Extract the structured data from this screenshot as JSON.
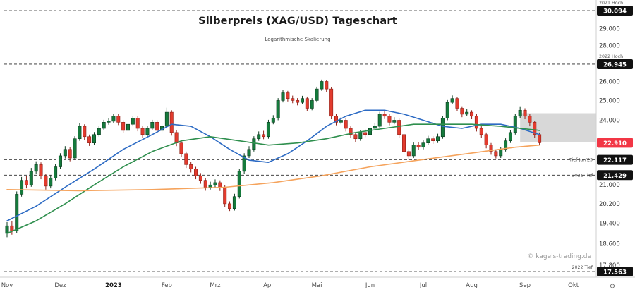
{
  "header": {
    "title": "Silberpreis (XAG/USD) Tageschart",
    "subtitle": "Logarithmische Skalierung"
  },
  "watermark": "© kagels-trading.de",
  "colors": {
    "up_fill": "#157a3c",
    "up_stroke": "#0b3d1f",
    "down_fill": "#e23b2e",
    "down_stroke": "#8f1f16",
    "ma_blue": "#2d6bc4",
    "ma_green": "#2f8f4e",
    "ma_orange": "#f5a35c",
    "badge_dark": "#111111",
    "badge_current": "#f23645",
    "zone": "#d8d8d8",
    "dashed_line": "#2a2a2a",
    "axis_text": "#3a3a3a",
    "note_text": "#555555",
    "separator": "#cfcfcf"
  },
  "x_axis": {
    "gear": "⚙"
  },
  "chart_data": {
    "type": "candlestick",
    "title": "Silberpreis (XAG/USD) Tageschart",
    "subtitle": "Logarithmische Skalierung",
    "scale": "logarithmic",
    "timeframe": "Tageschart (daily)",
    "symbol": "XAG/USD",
    "y_range": [
      17.563,
      30.094
    ],
    "current_price": 22.91,
    "x_labels": [
      {
        "label": "Nov",
        "index": 0,
        "bold": false
      },
      {
        "label": "Dez",
        "index": 11,
        "bold": false
      },
      {
        "label": "2023",
        "index": 22,
        "bold": true
      },
      {
        "label": "Feb",
        "index": 33,
        "bold": false
      },
      {
        "label": "Mrz",
        "index": 43,
        "bold": false
      },
      {
        "label": "Apr",
        "index": 54,
        "bold": false
      },
      {
        "label": "Mai",
        "index": 64,
        "bold": false
      },
      {
        "label": "Jun",
        "index": 75,
        "bold": false
      },
      {
        "label": "Jul",
        "index": 86,
        "bold": false
      },
      {
        "label": "Aug",
        "index": 96,
        "bold": false
      },
      {
        "label": "Sep",
        "index": 107,
        "bold": false
      },
      {
        "label": "Okt",
        "index": 117,
        "bold": false
      }
    ],
    "y_ticks": [
      {
        "label": "29.000",
        "value": 29.0
      },
      {
        "label": "28.000",
        "value": 28.0
      },
      {
        "label": "26.000",
        "value": 26.0
      },
      {
        "label": "25.000",
        "value": 25.0
      },
      {
        "label": "24.000",
        "value": 24.0
      },
      {
        "label": "21.000",
        "value": 21.0
      },
      {
        "label": "20.200",
        "value": 20.2
      },
      {
        "label": "19.400",
        "value": 19.4
      },
      {
        "label": "18.600",
        "value": 18.6
      },
      {
        "label": "17.800",
        "value": 17.8
      }
    ],
    "levels": [
      {
        "price": 30.094,
        "badge": "30.094",
        "note": "2021 Hoch",
        "note_pos": "axis_above",
        "note_dy": 0,
        "style": "dark",
        "dashed": true
      },
      {
        "price": 26.945,
        "badge": "26.945",
        "note": "2022 Hoch",
        "note_pos": "axis_above",
        "note_dy": 0,
        "style": "dark",
        "dashed": true
      },
      {
        "price": 22.91,
        "badge": "22.910",
        "note": "",
        "note_pos": "none",
        "note_dy": 0,
        "style": "current",
        "dashed": false
      },
      {
        "price": 22.117,
        "badge": "22.117",
        "note": "Tief Jun'23",
        "note_pos": "plot_left",
        "note_dy": 2,
        "style": "dark",
        "dashed": true
      },
      {
        "price": 21.429,
        "badge": "21.429",
        "note": "2021 Tief",
        "note_pos": "plot_left",
        "note_dy": 2,
        "style": "dark",
        "dashed": true
      },
      {
        "price": 17.563,
        "badge": "17.563",
        "note": "2022 Tief",
        "note_pos": "plot_left",
        "note_dy": -4,
        "style": "dark",
        "dashed": true
      }
    ],
    "highlight_zone": {
      "price_from": 22.95,
      "price_to": 24.35,
      "from_index": 106,
      "to": "right-edge"
    },
    "candles": [
      [
        19.0,
        19.45,
        18.85,
        19.3
      ],
      [
        19.3,
        19.5,
        18.95,
        19.1
      ],
      [
        19.1,
        20.72,
        19.02,
        20.6
      ],
      [
        20.6,
        21.35,
        20.5,
        21.2
      ],
      [
        21.2,
        21.38,
        20.85,
        21.0
      ],
      [
        21.0,
        21.75,
        20.92,
        21.6
      ],
      [
        21.6,
        22.05,
        21.48,
        21.9
      ],
      [
        21.9,
        22.0,
        21.25,
        21.4
      ],
      [
        21.4,
        21.5,
        20.8,
        20.95
      ],
      [
        20.95,
        21.42,
        20.85,
        21.3
      ],
      [
        21.3,
        21.92,
        21.2,
        21.8
      ],
      [
        21.8,
        22.42,
        21.7,
        22.3
      ],
      [
        22.3,
        22.75,
        22.18,
        22.6
      ],
      [
        22.6,
        22.7,
        22.05,
        22.2
      ],
      [
        22.2,
        23.22,
        22.12,
        23.1
      ],
      [
        23.1,
        23.85,
        23.0,
        23.7
      ],
      [
        23.7,
        23.8,
        23.05,
        23.2
      ],
      [
        23.2,
        23.3,
        22.76,
        22.9
      ],
      [
        22.9,
        23.42,
        22.8,
        23.3
      ],
      [
        23.3,
        23.72,
        23.2,
        23.6
      ],
      [
        23.6,
        24.02,
        23.5,
        23.9
      ],
      [
        23.9,
        24.1,
        23.78,
        23.95
      ],
      [
        23.95,
        24.32,
        23.85,
        24.2
      ],
      [
        24.2,
        24.3,
        23.76,
        23.9
      ],
      [
        23.9,
        24.0,
        23.36,
        23.5
      ],
      [
        23.5,
        23.92,
        23.4,
        23.8
      ],
      [
        23.8,
        24.22,
        23.7,
        24.1
      ],
      [
        24.1,
        24.2,
        23.46,
        23.6
      ],
      [
        23.6,
        23.7,
        23.15,
        23.3
      ],
      [
        23.3,
        23.72,
        23.2,
        23.6
      ],
      [
        23.6,
        24.02,
        23.5,
        23.9
      ],
      [
        23.9,
        24.0,
        23.36,
        23.5
      ],
      [
        23.5,
        23.82,
        23.4,
        23.7
      ],
      [
        23.7,
        24.63,
        23.6,
        24.4
      ],
      [
        24.4,
        24.5,
        23.25,
        23.4
      ],
      [
        23.4,
        23.5,
        22.75,
        22.9
      ],
      [
        22.9,
        23.0,
        22.25,
        22.4
      ],
      [
        22.4,
        22.5,
        21.75,
        21.9
      ],
      [
        21.9,
        22.02,
        21.55,
        21.7
      ],
      [
        21.7,
        21.8,
        21.25,
        21.4
      ],
      [
        21.4,
        21.52,
        21.05,
        21.2
      ],
      [
        21.2,
        21.3,
        20.75,
        20.9
      ],
      [
        20.9,
        21.14,
        20.8,
        21.0
      ],
      [
        21.0,
        21.24,
        20.9,
        21.1
      ],
      [
        21.1,
        21.2,
        20.74,
        20.9
      ],
      [
        20.9,
        20.98,
        20.05,
        20.2
      ],
      [
        20.2,
        20.3,
        19.9,
        20.0
      ],
      [
        20.0,
        20.62,
        19.92,
        20.5
      ],
      [
        20.5,
        21.72,
        20.42,
        21.6
      ],
      [
        21.6,
        22.42,
        21.5,
        22.3
      ],
      [
        22.3,
        22.75,
        22.2,
        22.6
      ],
      [
        22.6,
        23.22,
        22.5,
        23.1
      ],
      [
        23.1,
        23.45,
        23.0,
        23.3
      ],
      [
        23.3,
        23.48,
        23.08,
        23.2
      ],
      [
        23.2,
        24.02,
        23.1,
        23.9
      ],
      [
        23.9,
        24.25,
        23.8,
        24.1
      ],
      [
        24.1,
        25.12,
        24.0,
        25.0
      ],
      [
        25.0,
        25.55,
        24.9,
        25.4
      ],
      [
        25.4,
        25.5,
        24.95,
        25.1
      ],
      [
        25.1,
        25.25,
        24.86,
        25.0
      ],
      [
        25.0,
        25.12,
        24.75,
        24.9
      ],
      [
        24.9,
        25.24,
        24.8,
        25.1
      ],
      [
        25.1,
        25.2,
        24.45,
        24.6
      ],
      [
        24.6,
        25.12,
        24.5,
        25.0
      ],
      [
        25.0,
        25.72,
        24.9,
        25.6
      ],
      [
        25.6,
        26.1,
        25.5,
        26.0
      ],
      [
        26.0,
        26.08,
        25.45,
        25.6
      ],
      [
        25.6,
        25.7,
        24.05,
        24.2
      ],
      [
        24.2,
        24.32,
        23.75,
        23.9
      ],
      [
        23.9,
        24.15,
        23.8,
        24.0
      ],
      [
        24.0,
        24.1,
        23.45,
        23.6
      ],
      [
        23.6,
        23.7,
        23.15,
        23.3
      ],
      [
        23.3,
        23.42,
        22.95,
        23.1
      ],
      [
        23.1,
        23.52,
        23.0,
        23.4
      ],
      [
        23.4,
        23.55,
        23.18,
        23.3
      ],
      [
        23.3,
        23.72,
        23.2,
        23.6
      ],
      [
        23.6,
        23.85,
        23.5,
        23.7
      ],
      [
        23.7,
        24.42,
        23.6,
        24.3
      ],
      [
        24.3,
        24.45,
        24.06,
        24.2
      ],
      [
        24.2,
        24.3,
        23.75,
        23.9
      ],
      [
        23.9,
        24.15,
        23.8,
        24.0
      ],
      [
        24.0,
        24.08,
        23.15,
        23.3
      ],
      [
        23.3,
        23.38,
        22.35,
        22.5
      ],
      [
        22.5,
        22.6,
        22.12,
        22.3
      ],
      [
        22.3,
        22.92,
        22.2,
        22.8
      ],
      [
        22.8,
        22.95,
        22.56,
        22.7
      ],
      [
        22.7,
        23.02,
        22.6,
        22.9
      ],
      [
        22.9,
        23.24,
        22.8,
        23.1
      ],
      [
        23.1,
        23.22,
        22.86,
        23.0
      ],
      [
        23.0,
        23.34,
        22.9,
        23.2
      ],
      [
        23.2,
        24.22,
        23.1,
        24.1
      ],
      [
        24.1,
        25.02,
        24.0,
        24.9
      ],
      [
        24.9,
        25.26,
        24.8,
        25.1
      ],
      [
        25.1,
        25.18,
        24.45,
        24.6
      ],
      [
        24.6,
        24.7,
        24.15,
        24.3
      ],
      [
        24.3,
        24.55,
        24.2,
        24.4
      ],
      [
        24.4,
        24.5,
        24.05,
        24.2
      ],
      [
        24.2,
        24.3,
        23.45,
        23.6
      ],
      [
        23.6,
        23.7,
        23.15,
        23.3
      ],
      [
        23.3,
        23.4,
        22.65,
        22.8
      ],
      [
        22.8,
        22.9,
        22.35,
        22.5
      ],
      [
        22.5,
        22.58,
        22.18,
        22.3
      ],
      [
        22.3,
        22.72,
        22.2,
        22.6
      ],
      [
        22.6,
        23.12,
        22.5,
        23.0
      ],
      [
        23.0,
        23.52,
        22.9,
        23.4
      ],
      [
        23.4,
        24.32,
        23.3,
        24.2
      ],
      [
        24.2,
        24.7,
        24.1,
        24.5
      ],
      [
        24.5,
        24.6,
        24.05,
        24.2
      ],
      [
        24.2,
        24.3,
        23.7,
        23.9
      ],
      [
        23.9,
        23.98,
        23.15,
        23.3
      ],
      [
        23.3,
        23.4,
        22.8,
        22.91
      ]
    ],
    "overlays": [
      {
        "name": "ma-blue",
        "color_key": "ma_blue",
        "points": [
          [
            0,
            19.5
          ],
          [
            6,
            20.1
          ],
          [
            12,
            20.9
          ],
          [
            18,
            21.7
          ],
          [
            24,
            22.6
          ],
          [
            30,
            23.3
          ],
          [
            34,
            23.8
          ],
          [
            38,
            23.7
          ],
          [
            42,
            23.2
          ],
          [
            46,
            22.6
          ],
          [
            50,
            22.1
          ],
          [
            54,
            22.0
          ],
          [
            58,
            22.4
          ],
          [
            62,
            23.0
          ],
          [
            66,
            23.7
          ],
          [
            70,
            24.2
          ],
          [
            74,
            24.5
          ],
          [
            78,
            24.5
          ],
          [
            82,
            24.3
          ],
          [
            86,
            24.0
          ],
          [
            90,
            23.7
          ],
          [
            94,
            23.6
          ],
          [
            98,
            23.8
          ],
          [
            102,
            23.8
          ],
          [
            106,
            23.6
          ],
          [
            110,
            23.3
          ]
        ]
      },
      {
        "name": "ma-green",
        "color_key": "ma_green",
        "points": [
          [
            0,
            19.0
          ],
          [
            6,
            19.5
          ],
          [
            12,
            20.2
          ],
          [
            18,
            21.0
          ],
          [
            24,
            21.8
          ],
          [
            30,
            22.5
          ],
          [
            36,
            23.0
          ],
          [
            42,
            23.2
          ],
          [
            48,
            23.0
          ],
          [
            54,
            22.8
          ],
          [
            60,
            22.9
          ],
          [
            66,
            23.1
          ],
          [
            72,
            23.4
          ],
          [
            78,
            23.6
          ],
          [
            84,
            23.8
          ],
          [
            90,
            23.8
          ],
          [
            96,
            23.8
          ],
          [
            102,
            23.7
          ],
          [
            110,
            23.5
          ]
        ]
      },
      {
        "name": "ma-orange",
        "color_key": "ma_orange",
        "points": [
          [
            0,
            20.8
          ],
          [
            15,
            20.75
          ],
          [
            30,
            20.8
          ],
          [
            45,
            20.9
          ],
          [
            55,
            21.1
          ],
          [
            65,
            21.4
          ],
          [
            75,
            21.8
          ],
          [
            85,
            22.1
          ],
          [
            95,
            22.4
          ],
          [
            105,
            22.7
          ],
          [
            110,
            22.8
          ]
        ]
      }
    ]
  }
}
